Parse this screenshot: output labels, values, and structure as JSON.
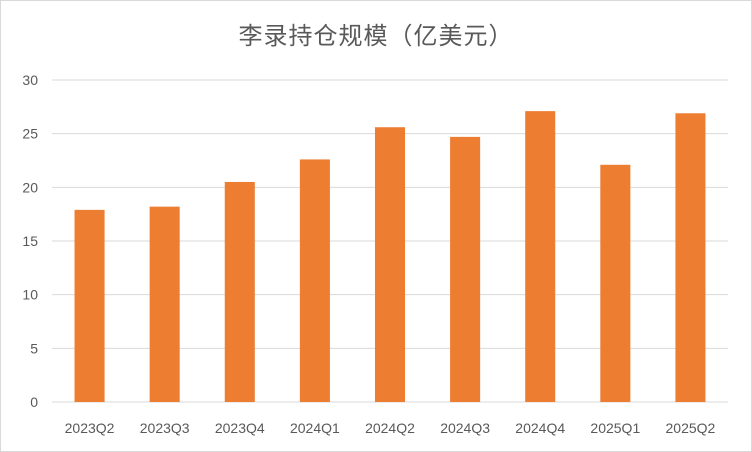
{
  "chart_data": {
    "type": "bar",
    "title": "李录持仓规模（亿美元）",
    "categories": [
      "2023Q2",
      "2023Q3",
      "2023Q4",
      "2024Q1",
      "2024Q2",
      "2024Q3",
      "2024Q4",
      "2025Q1",
      "2025Q2"
    ],
    "series": [
      {
        "values": [
          17.9,
          18.2,
          20.5,
          22.6,
          25.6,
          24.7,
          27.1,
          22.1,
          26.9
        ]
      }
    ],
    "ylim": [
      0,
      30
    ],
    "yticks": [
      0,
      5,
      10,
      15,
      20,
      25,
      30
    ],
    "grid": true,
    "legend": "none",
    "colors": {
      "bar": "#ED7D31",
      "grid": "#D9D9D9",
      "text": "#595959"
    }
  }
}
